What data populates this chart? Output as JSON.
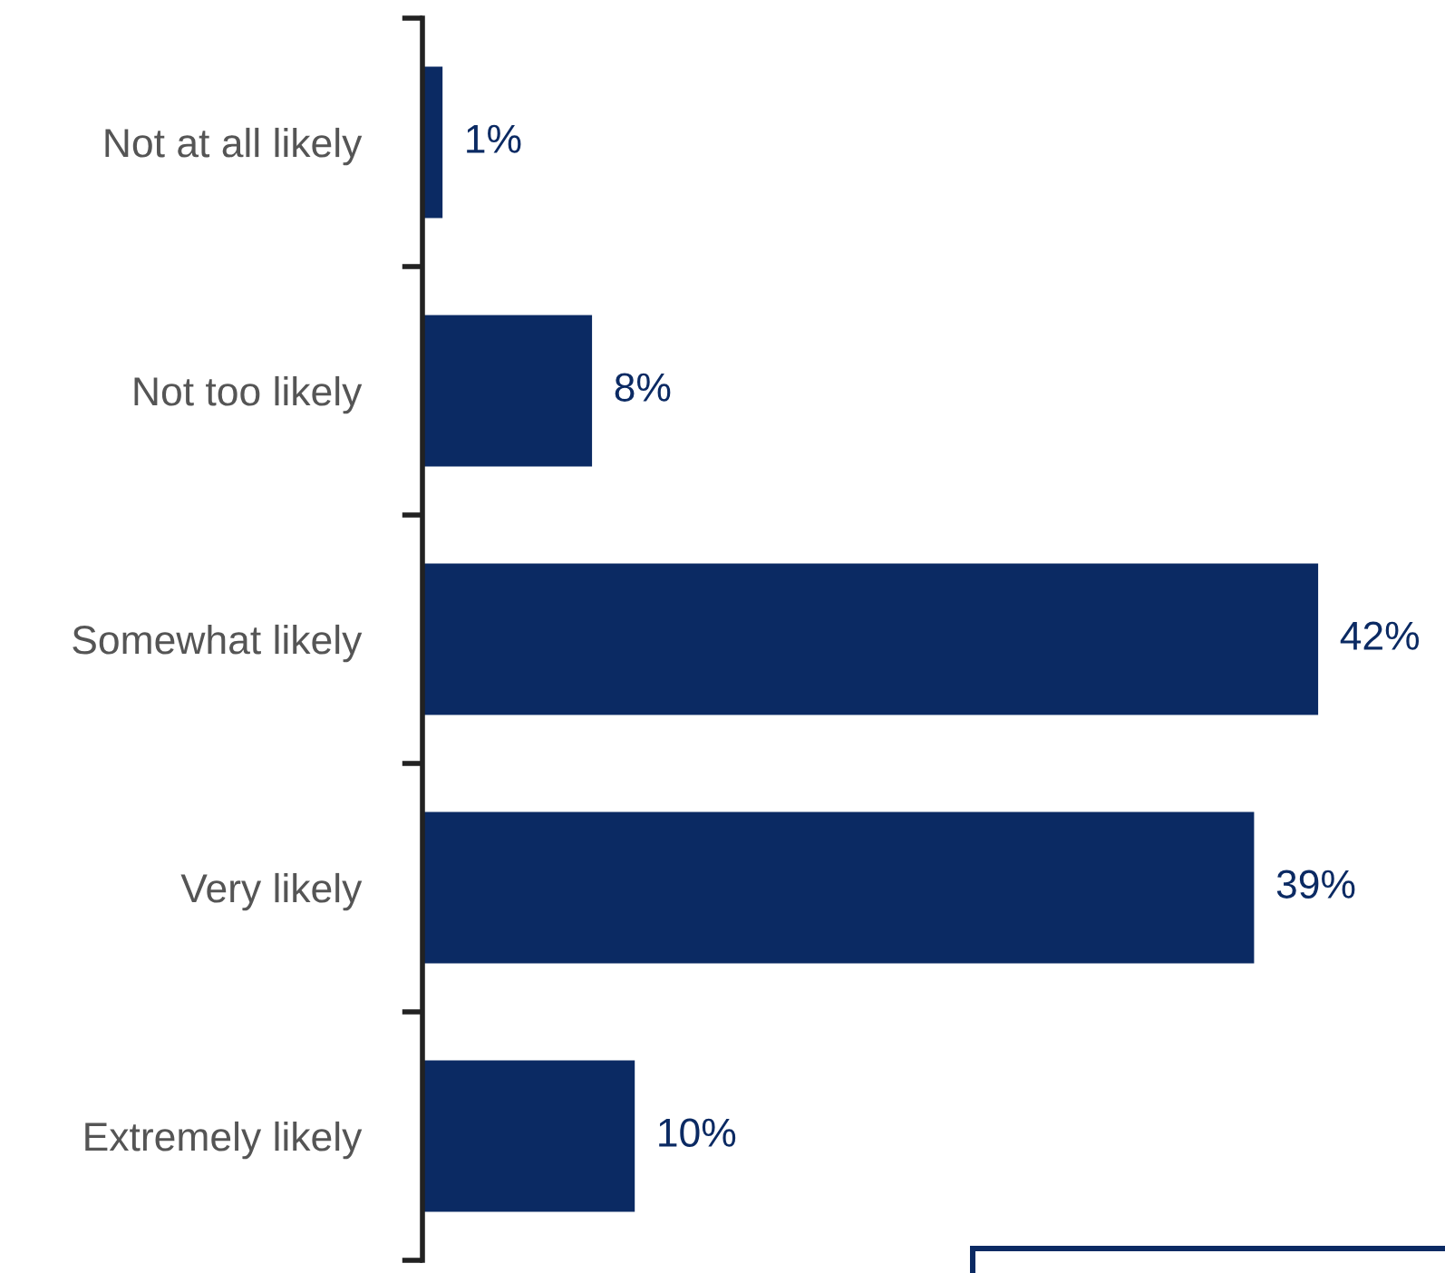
{
  "chart_data": {
    "type": "bar",
    "orientation": "horizontal",
    "categories": [
      "Not at all likely",
      "Not too likely",
      "Somewhat likely",
      "Very likely",
      "Extremely likely"
    ],
    "values": [
      1,
      8,
      42,
      39,
      10
    ],
    "value_labels": [
      "1%",
      "8%",
      "42%",
      "39%",
      "10%"
    ],
    "color": "#0b2a63",
    "grid": false,
    "legend": false,
    "tick_labels": "y"
  }
}
